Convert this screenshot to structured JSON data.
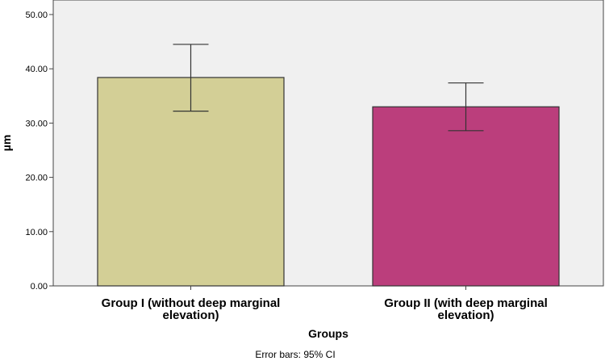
{
  "chart_data": {
    "type": "bar",
    "categories": [
      [
        "Group I (without deep marginal",
        "elevation)"
      ],
      [
        "Group II (with deep marginal",
        "elevation)"
      ]
    ],
    "values": [
      38.4,
      33.0
    ],
    "error_bars": [
      {
        "low": 32.2,
        "high": 44.5
      },
      {
        "low": 28.6,
        "high": 37.4
      }
    ],
    "bar_colors": [
      "#d3cf96",
      "#bb3e7c"
    ],
    "plot_background": "#f0f0f0",
    "xlabel": "Groups",
    "ylabel": "µm",
    "ylim": [
      0,
      50
    ],
    "yticks": [
      "0.00",
      "10.00",
      "20.00",
      "30.00",
      "40.00",
      "50.00"
    ],
    "footnote": "Error bars: 95% CI",
    "grid": false
  }
}
